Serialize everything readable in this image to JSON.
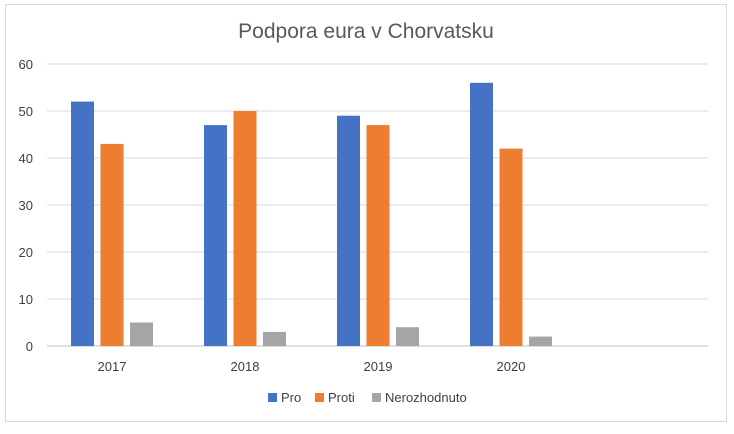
{
  "chart_data": {
    "type": "bar",
    "title": "Podpora eura v Chorvatsku",
    "xlabel": "",
    "ylabel": "",
    "categories": [
      "2017",
      "2018",
      "2019",
      "2020"
    ],
    "series": [
      {
        "name": "Pro",
        "color": "#4472C4",
        "values": [
          52,
          47,
          49,
          56
        ]
      },
      {
        "name": "Proti",
        "color": "#ED7D31",
        "values": [
          43,
          50,
          47,
          42
        ]
      },
      {
        "name": "Nerozhodnuto",
        "color": "#A5A5A5",
        "values": [
          5,
          3,
          4,
          2
        ]
      }
    ],
    "ylim": [
      0,
      60
    ],
    "yticks": [
      "0",
      "10",
      "20",
      "30",
      "40",
      "50",
      "60"
    ],
    "grid": true,
    "legend_position": "bottom"
  }
}
